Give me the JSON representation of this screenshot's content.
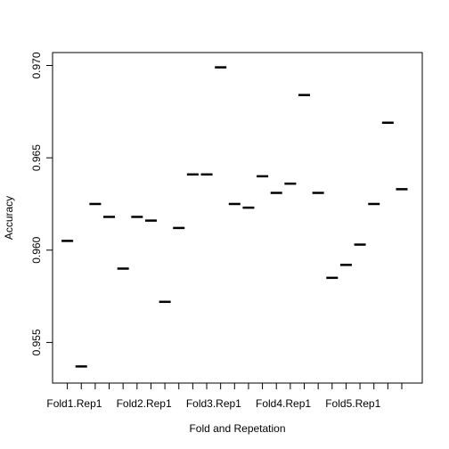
{
  "chart_data": {
    "type": "scatter",
    "marker": "horizontal-dash",
    "xlabel": "Fold and Repetation",
    "ylabel": "Accuracy",
    "ylim": [
      0.9528,
      0.9707
    ],
    "yticks": [
      "0.955",
      "0.960",
      "0.965",
      "0.970"
    ],
    "ytick_values": [
      0.955,
      0.96,
      0.965,
      0.97
    ],
    "xtick_count": 25,
    "xtick_labels": [
      {
        "index": 1,
        "label": "Fold1.Rep1"
      },
      {
        "index": 6,
        "label": "Fold2.Rep1"
      },
      {
        "index": 11,
        "label": "Fold3.Rep1"
      },
      {
        "index": 16,
        "label": "Fold4.Rep1"
      },
      {
        "index": 21,
        "label": "Fold5.Rep1"
      }
    ],
    "values": [
      0.9605,
      0.9537,
      0.9625,
      0.9618,
      0.959,
      0.9618,
      0.9616,
      0.9572,
      0.9612,
      0.9641,
      0.9641,
      0.9699,
      0.9625,
      0.9623,
      0.964,
      0.9631,
      0.9636,
      0.9684,
      0.9631,
      0.9585,
      0.9592,
      0.9603,
      0.9625,
      0.9669,
      0.9633
    ]
  }
}
